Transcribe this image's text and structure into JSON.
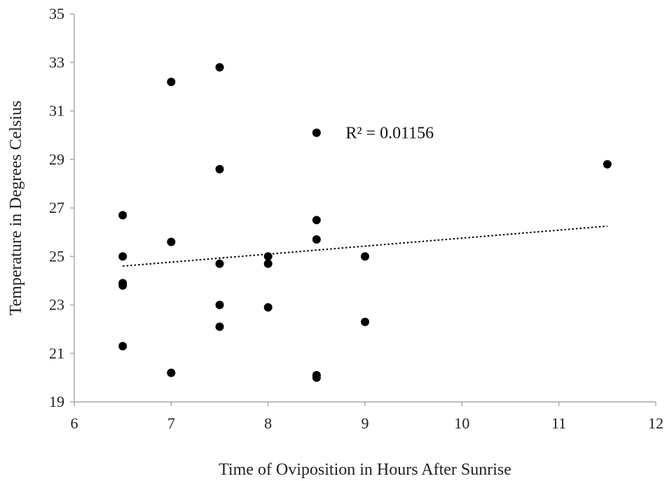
{
  "chart_data": {
    "type": "scatter",
    "xlabel": "Time of Oviposition in Hours After Sunrise",
    "ylabel": "Temperature in Degrees Celsius",
    "xlim": [
      6,
      12
    ],
    "ylim": [
      19,
      35
    ],
    "x_ticks": [
      "6",
      "7",
      "8",
      "9",
      "10",
      "11",
      "12"
    ],
    "y_ticks": [
      "19",
      "21",
      "23",
      "25",
      "27",
      "29",
      "31",
      "33",
      "35"
    ],
    "grid": false,
    "legend": "none",
    "series": [
      {
        "points": [
          {
            "x": 6.5,
            "y": 26.7
          },
          {
            "x": 6.5,
            "y": 25.0
          },
          {
            "x": 6.5,
            "y": 23.9
          },
          {
            "x": 6.5,
            "y": 23.8
          },
          {
            "x": 6.5,
            "y": 21.3
          },
          {
            "x": 7.0,
            "y": 32.2
          },
          {
            "x": 7.0,
            "y": 25.6
          },
          {
            "x": 7.0,
            "y": 20.2
          },
          {
            "x": 7.5,
            "y": 32.8
          },
          {
            "x": 7.5,
            "y": 28.6
          },
          {
            "x": 7.5,
            "y": 24.7
          },
          {
            "x": 7.5,
            "y": 23.0
          },
          {
            "x": 7.5,
            "y": 22.1
          },
          {
            "x": 8.0,
            "y": 25.0
          },
          {
            "x": 8.0,
            "y": 24.7
          },
          {
            "x": 8.0,
            "y": 22.9
          },
          {
            "x": 8.5,
            "y": 30.1
          },
          {
            "x": 8.5,
            "y": 26.5
          },
          {
            "x": 8.5,
            "y": 25.7
          },
          {
            "x": 8.5,
            "y": 20.1
          },
          {
            "x": 8.5,
            "y": 20.0
          },
          {
            "x": 9.0,
            "y": 25.0
          },
          {
            "x": 9.0,
            "y": 22.3
          },
          {
            "x": 11.5,
            "y": 28.8
          }
        ],
        "color": "#000000"
      }
    ],
    "trendline": {
      "style": "dotted",
      "color": "#000000",
      "x_start": 6.5,
      "y_start": 24.6,
      "x_end": 11.5,
      "y_end": 26.25
    },
    "annotations": [
      {
        "text": "R² = 0.01156",
        "x": 8.8,
        "y": 30.1
      }
    ]
  }
}
